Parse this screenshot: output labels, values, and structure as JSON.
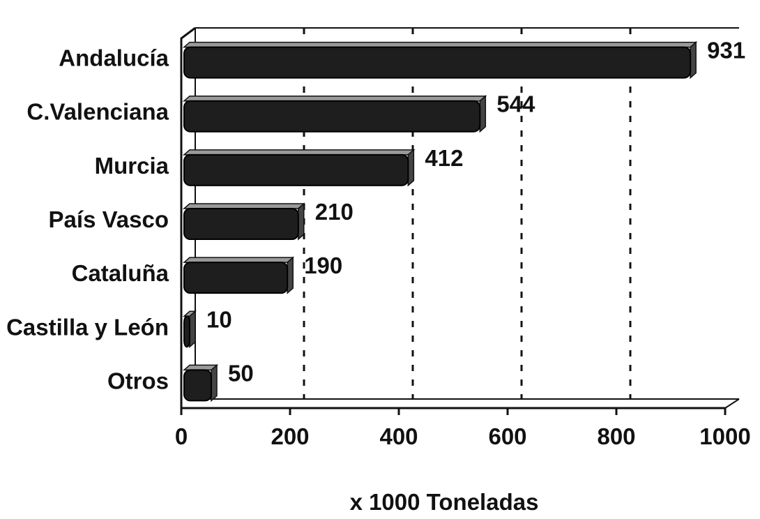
{
  "chart_data": {
    "type": "bar",
    "orientation": "horizontal",
    "title": "",
    "xlabel": "x 1000 Toneladas",
    "ylabel": "",
    "categories": [
      "Andalucía",
      "C.Valenciana",
      "Murcia",
      "País Vasco",
      "Cataluña",
      "Castilla y León",
      "Otros"
    ],
    "values": [
      931,
      544,
      412,
      210,
      190,
      10,
      50
    ],
    "value_labels": [
      "931",
      "544",
      "412",
      "210",
      "190",
      "10",
      "50"
    ],
    "xlim": [
      0,
      1000
    ],
    "xticks": [
      "0",
      "200",
      "400",
      "600",
      "800",
      "1000"
    ],
    "grid": "vertical dashed",
    "legend": "none",
    "colors": {
      "bar": "#1e1e1e",
      "bar_top": "#9a9a9a",
      "axis": "#111111",
      "grid": "#111111"
    }
  }
}
